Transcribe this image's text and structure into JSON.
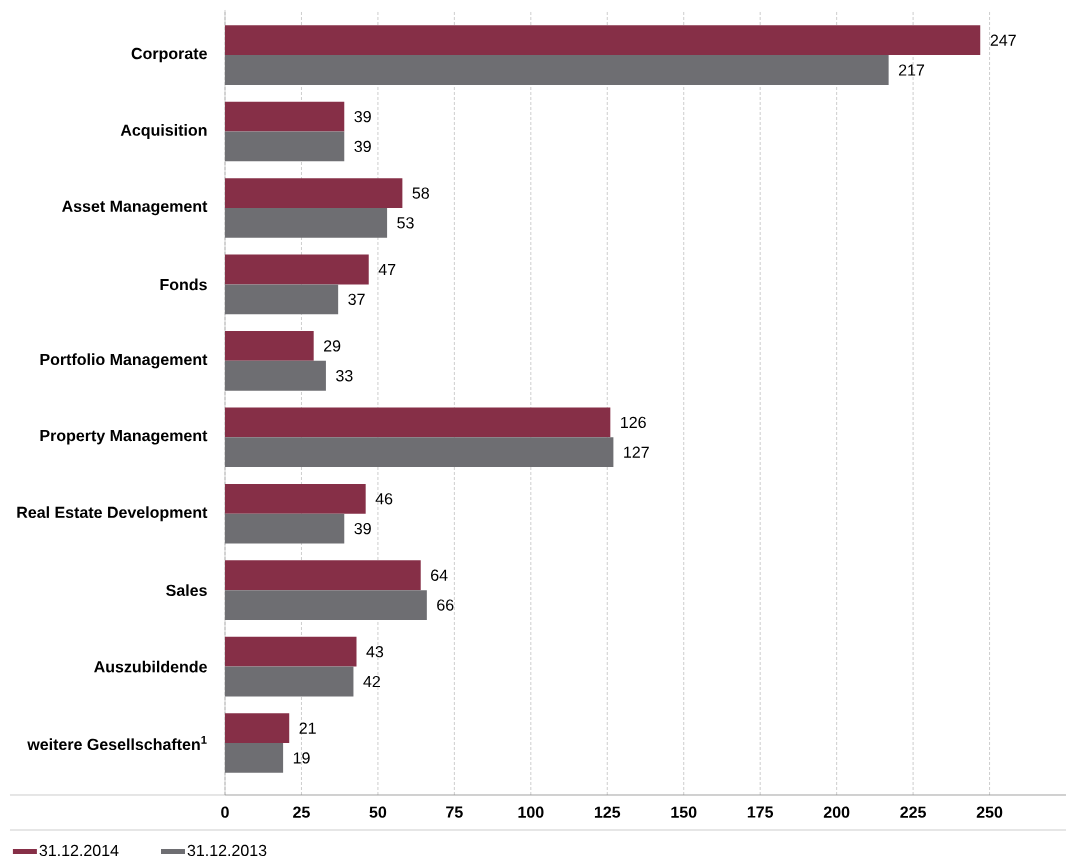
{
  "chart_data": {
    "type": "bar",
    "orientation": "horizontal",
    "categories": [
      "Corporate",
      "Acquisition",
      "Asset Management",
      "Fonds",
      "Portfolio Management",
      "Property Management",
      "Real Estate Development",
      "Sales",
      "Auszubildende",
      "weitere Gesellschaften$^{1}$"
    ],
    "series": [
      {
        "name": "31.12.2014",
        "color": "#862f47",
        "values": [
          247,
          39,
          58,
          47,
          29,
          126,
          46,
          64,
          43,
          21
        ]
      },
      {
        "name": "31.12.2013",
        "color": "#6e6e72",
        "values": [
          217,
          39,
          53,
          37,
          33,
          127,
          39,
          66,
          42,
          19
        ]
      }
    ],
    "xlim": [
      0,
      275
    ],
    "xticks": [
      0,
      25,
      50,
      75,
      100,
      125,
      150,
      175,
      200,
      225,
      250
    ],
    "grid": "x",
    "legend": "bottom left",
    "data_labels": true
  }
}
